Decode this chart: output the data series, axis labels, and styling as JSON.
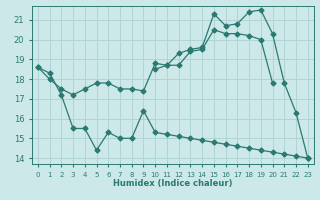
{
  "xlabel": "Humidex (Indice chaleur)",
  "bg_color": "#cce8e8",
  "grid_color": "#b0d4d4",
  "line_color": "#2a7a72",
  "xlim": [
    -0.5,
    23.5
  ],
  "ylim": [
    13.7,
    21.7
  ],
  "xticks": [
    0,
    1,
    2,
    3,
    4,
    5,
    6,
    7,
    8,
    9,
    10,
    11,
    12,
    13,
    14,
    15,
    16,
    17,
    18,
    19,
    20,
    21,
    22,
    23
  ],
  "yticks": [
    14,
    15,
    16,
    17,
    18,
    19,
    20,
    21
  ],
  "line1_x": [
    0,
    1,
    2,
    3,
    4,
    5,
    6,
    7,
    8,
    9,
    10,
    11,
    12,
    13,
    14,
    15,
    16,
    17,
    18,
    19,
    20,
    21,
    22,
    23
  ],
  "line1_y": [
    18.6,
    18.3,
    17.2,
    15.5,
    15.5,
    14.4,
    15.3,
    15.0,
    15.0,
    16.4,
    15.3,
    15.2,
    15.1,
    15.0,
    14.9,
    14.8,
    14.7,
    14.6,
    14.5,
    14.4,
    14.3,
    14.2,
    14.1,
    14.0
  ],
  "line2_x": [
    0,
    1,
    2,
    3,
    4,
    5,
    6,
    7,
    8,
    9,
    10,
    11,
    12,
    13,
    14,
    15,
    16,
    17,
    18,
    19,
    20,
    21,
    22,
    23
  ],
  "line2_y": [
    18.6,
    18.0,
    17.5,
    17.2,
    17.5,
    17.8,
    17.8,
    17.5,
    17.5,
    17.4,
    18.8,
    18.7,
    18.7,
    19.4,
    19.5,
    20.5,
    20.3,
    20.3,
    20.2,
    20.0,
    17.8,
    null,
    null,
    null
  ],
  "line3_x": [
    0,
    1,
    2,
    3,
    4,
    5,
    6,
    7,
    8,
    9,
    10,
    11,
    12,
    13,
    14,
    15,
    16,
    17,
    18,
    19,
    20,
    21,
    22,
    23
  ],
  "line3_y": [
    null,
    null,
    null,
    null,
    null,
    null,
    null,
    null,
    null,
    null,
    18.5,
    18.7,
    19.3,
    19.5,
    19.6,
    21.3,
    20.7,
    20.8,
    21.4,
    21.5,
    20.3,
    17.8,
    16.3,
    14.0
  ]
}
